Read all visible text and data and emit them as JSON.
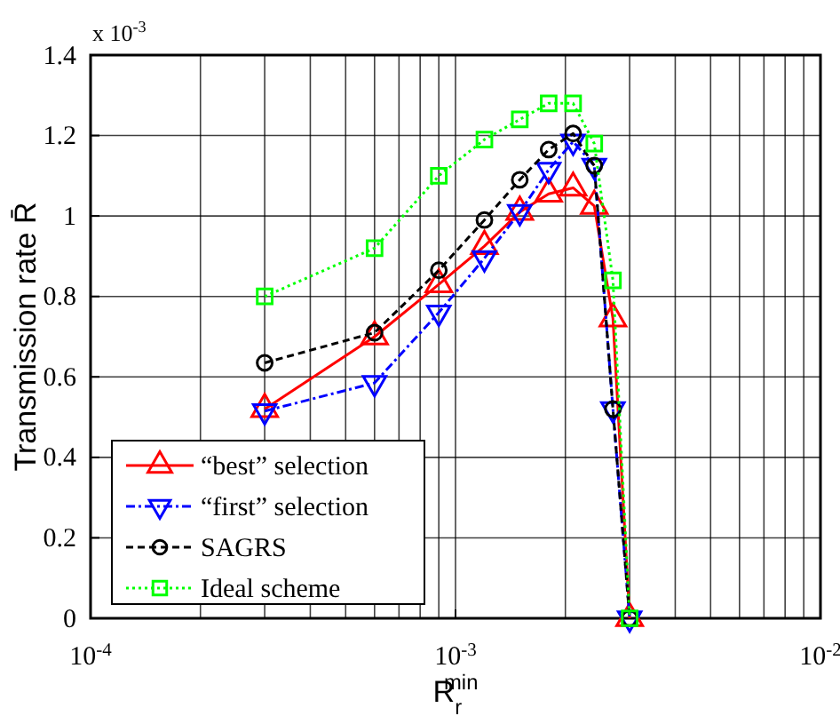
{
  "chart_data": {
    "type": "line",
    "xlabel": "R$_{r}$$^{min}$",
    "ylabel": "Transmission rate R̄",
    "annotations": [
      "x 10$^{-3}$"
    ],
    "x": [
      0.0003,
      0.0006,
      0.0009,
      0.0012,
      0.0015,
      0.0018,
      0.0021,
      0.0024,
      0.0027,
      0.003
    ],
    "series": [
      {
        "name": "“best” selection",
        "color": "#ff0000",
        "marker": "triangle",
        "line_style": "solid",
        "values": [
          0.52,
          0.7,
          0.83,
          0.925,
          1.01,
          1.055,
          1.07,
          1.025,
          0.745,
          0
        ]
      },
      {
        "name": "“first” selection",
        "color": "#0000ff",
        "marker": "triangle-down",
        "line_style": "dashdot",
        "values": [
          0.515,
          0.585,
          0.76,
          0.895,
          1.01,
          1.115,
          1.185,
          1.125,
          0.52,
          0
        ]
      },
      {
        "name": "SAGRS",
        "color": "#000000",
        "marker": "circle",
        "line_style": "dashed",
        "values": [
          0.635,
          0.71,
          0.865,
          0.99,
          1.09,
          1.165,
          1.205,
          1.125,
          0.52,
          0
        ]
      },
      {
        "name": "Ideal scheme",
        "color": "#00ff00",
        "marker": "square",
        "line_style": "dotted",
        "values": [
          0.8,
          0.92,
          1.1,
          1.19,
          1.24,
          1.28,
          1.28,
          1.18,
          0.84,
          0
        ]
      }
    ],
    "log": "x",
    "xlim": [
      0.0001,
      0.01
    ],
    "xticks": [
      {
        "value": 0.0001,
        "label": "10$^{-4}$"
      },
      {
        "value": 0.001,
        "label": "10$^{-3}$"
      },
      {
        "value": 0.01,
        "label": "10$^{-2}$"
      }
    ],
    "ylim": [
      0,
      1.4
    ],
    "yticks": [
      0,
      0.2,
      0.4,
      0.6,
      0.8,
      1,
      1.2,
      1.4
    ],
    "grid": true,
    "legend": "bottom left"
  }
}
